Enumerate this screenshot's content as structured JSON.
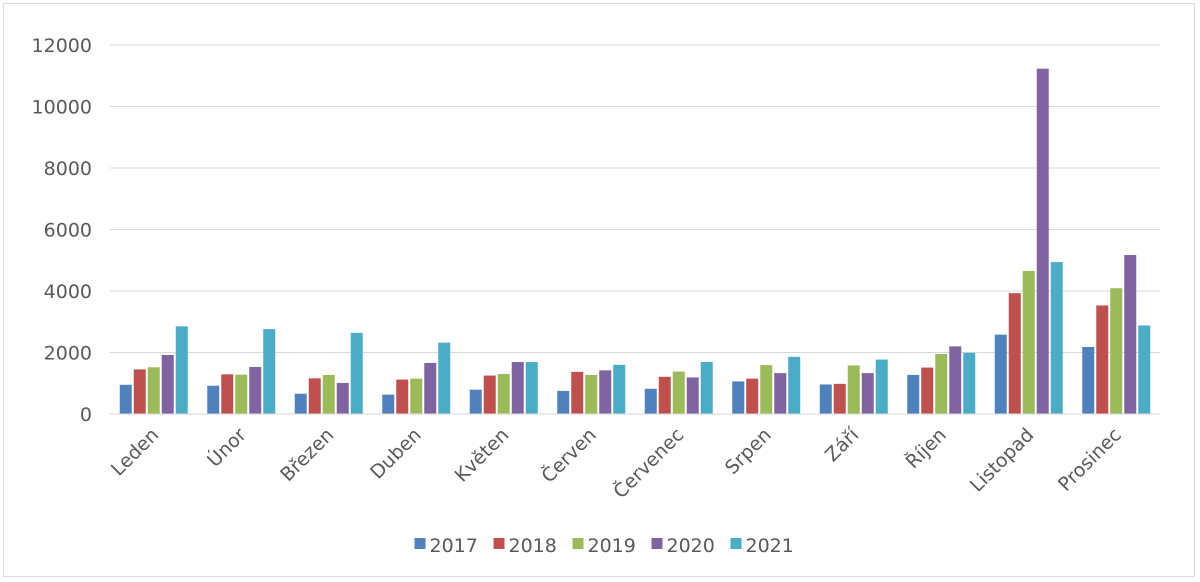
{
  "chart_data": {
    "type": "bar",
    "title": "",
    "xlabel": "",
    "ylabel": "",
    "ylim": [
      0,
      12000
    ],
    "yticks": [
      0,
      2000,
      4000,
      6000,
      8000,
      10000,
      12000
    ],
    "grid": true,
    "legend_position": "bottom",
    "categories": [
      "Leden",
      "Únor",
      "Březen",
      "Duben",
      "Květen",
      "Červen",
      "Červenec",
      "Srpen",
      "Září",
      "Říjen",
      "Listopad",
      "Prosinec"
    ],
    "series": [
      {
        "name": "2017",
        "color": "#4f81bd",
        "values": [
          950,
          920,
          660,
          630,
          790,
          750,
          820,
          1060,
          960,
          1270,
          2580,
          2180
        ]
      },
      {
        "name": "2018",
        "color": "#c0504d",
        "values": [
          1450,
          1290,
          1160,
          1120,
          1250,
          1370,
          1210,
          1150,
          980,
          1510,
          3930,
          3530
        ]
      },
      {
        "name": "2019",
        "color": "#9bbb59",
        "values": [
          1520,
          1280,
          1270,
          1150,
          1300,
          1270,
          1380,
          1590,
          1580,
          1950,
          4650,
          4090
        ]
      },
      {
        "name": "2020",
        "color": "#8064a2",
        "values": [
          1920,
          1530,
          1010,
          1660,
          1690,
          1420,
          1190,
          1330,
          1330,
          2200,
          11230,
          5170
        ]
      },
      {
        "name": "2021",
        "color": "#4bacc6",
        "values": [
          2850,
          2760,
          2640,
          2320,
          1690,
          1600,
          1690,
          1860,
          1770,
          1990,
          4940,
          2880
        ]
      }
    ]
  }
}
